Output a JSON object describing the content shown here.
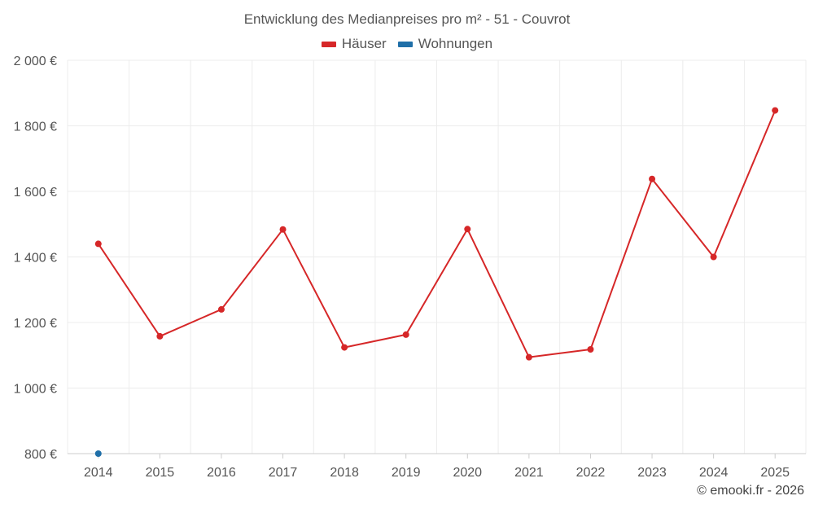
{
  "chart_data": {
    "type": "line",
    "title": "Entwicklung des Medianpreises pro m² - 51 - Couvrot",
    "categories": [
      "2014",
      "2015",
      "2016",
      "2017",
      "2018",
      "2019",
      "2020",
      "2021",
      "2022",
      "2023",
      "2024",
      "2025"
    ],
    "series": [
      {
        "name": "Häuser",
        "color": "#d62728",
        "values": [
          1440,
          1158,
          1240,
          1484,
          1124,
          1163,
          1485,
          1094,
          1118,
          1638,
          1400,
          1847
        ]
      },
      {
        "name": "Wohnungen",
        "color": "#1f6fa8",
        "values": [
          800,
          null,
          null,
          null,
          null,
          null,
          null,
          null,
          null,
          null,
          null,
          null
        ]
      }
    ],
    "ylim": [
      800,
      2000
    ],
    "yticks": [
      800,
      1000,
      1200,
      1400,
      1600,
      1800,
      2000
    ],
    "ytick_labels": [
      "800 €",
      "1 000 €",
      "1 200 €",
      "1 400 €",
      "1 600 €",
      "1 800 €",
      "2 000 €"
    ],
    "grid": true,
    "legend_position": "top-center"
  },
  "credit": "© emooki.fr - 2026"
}
